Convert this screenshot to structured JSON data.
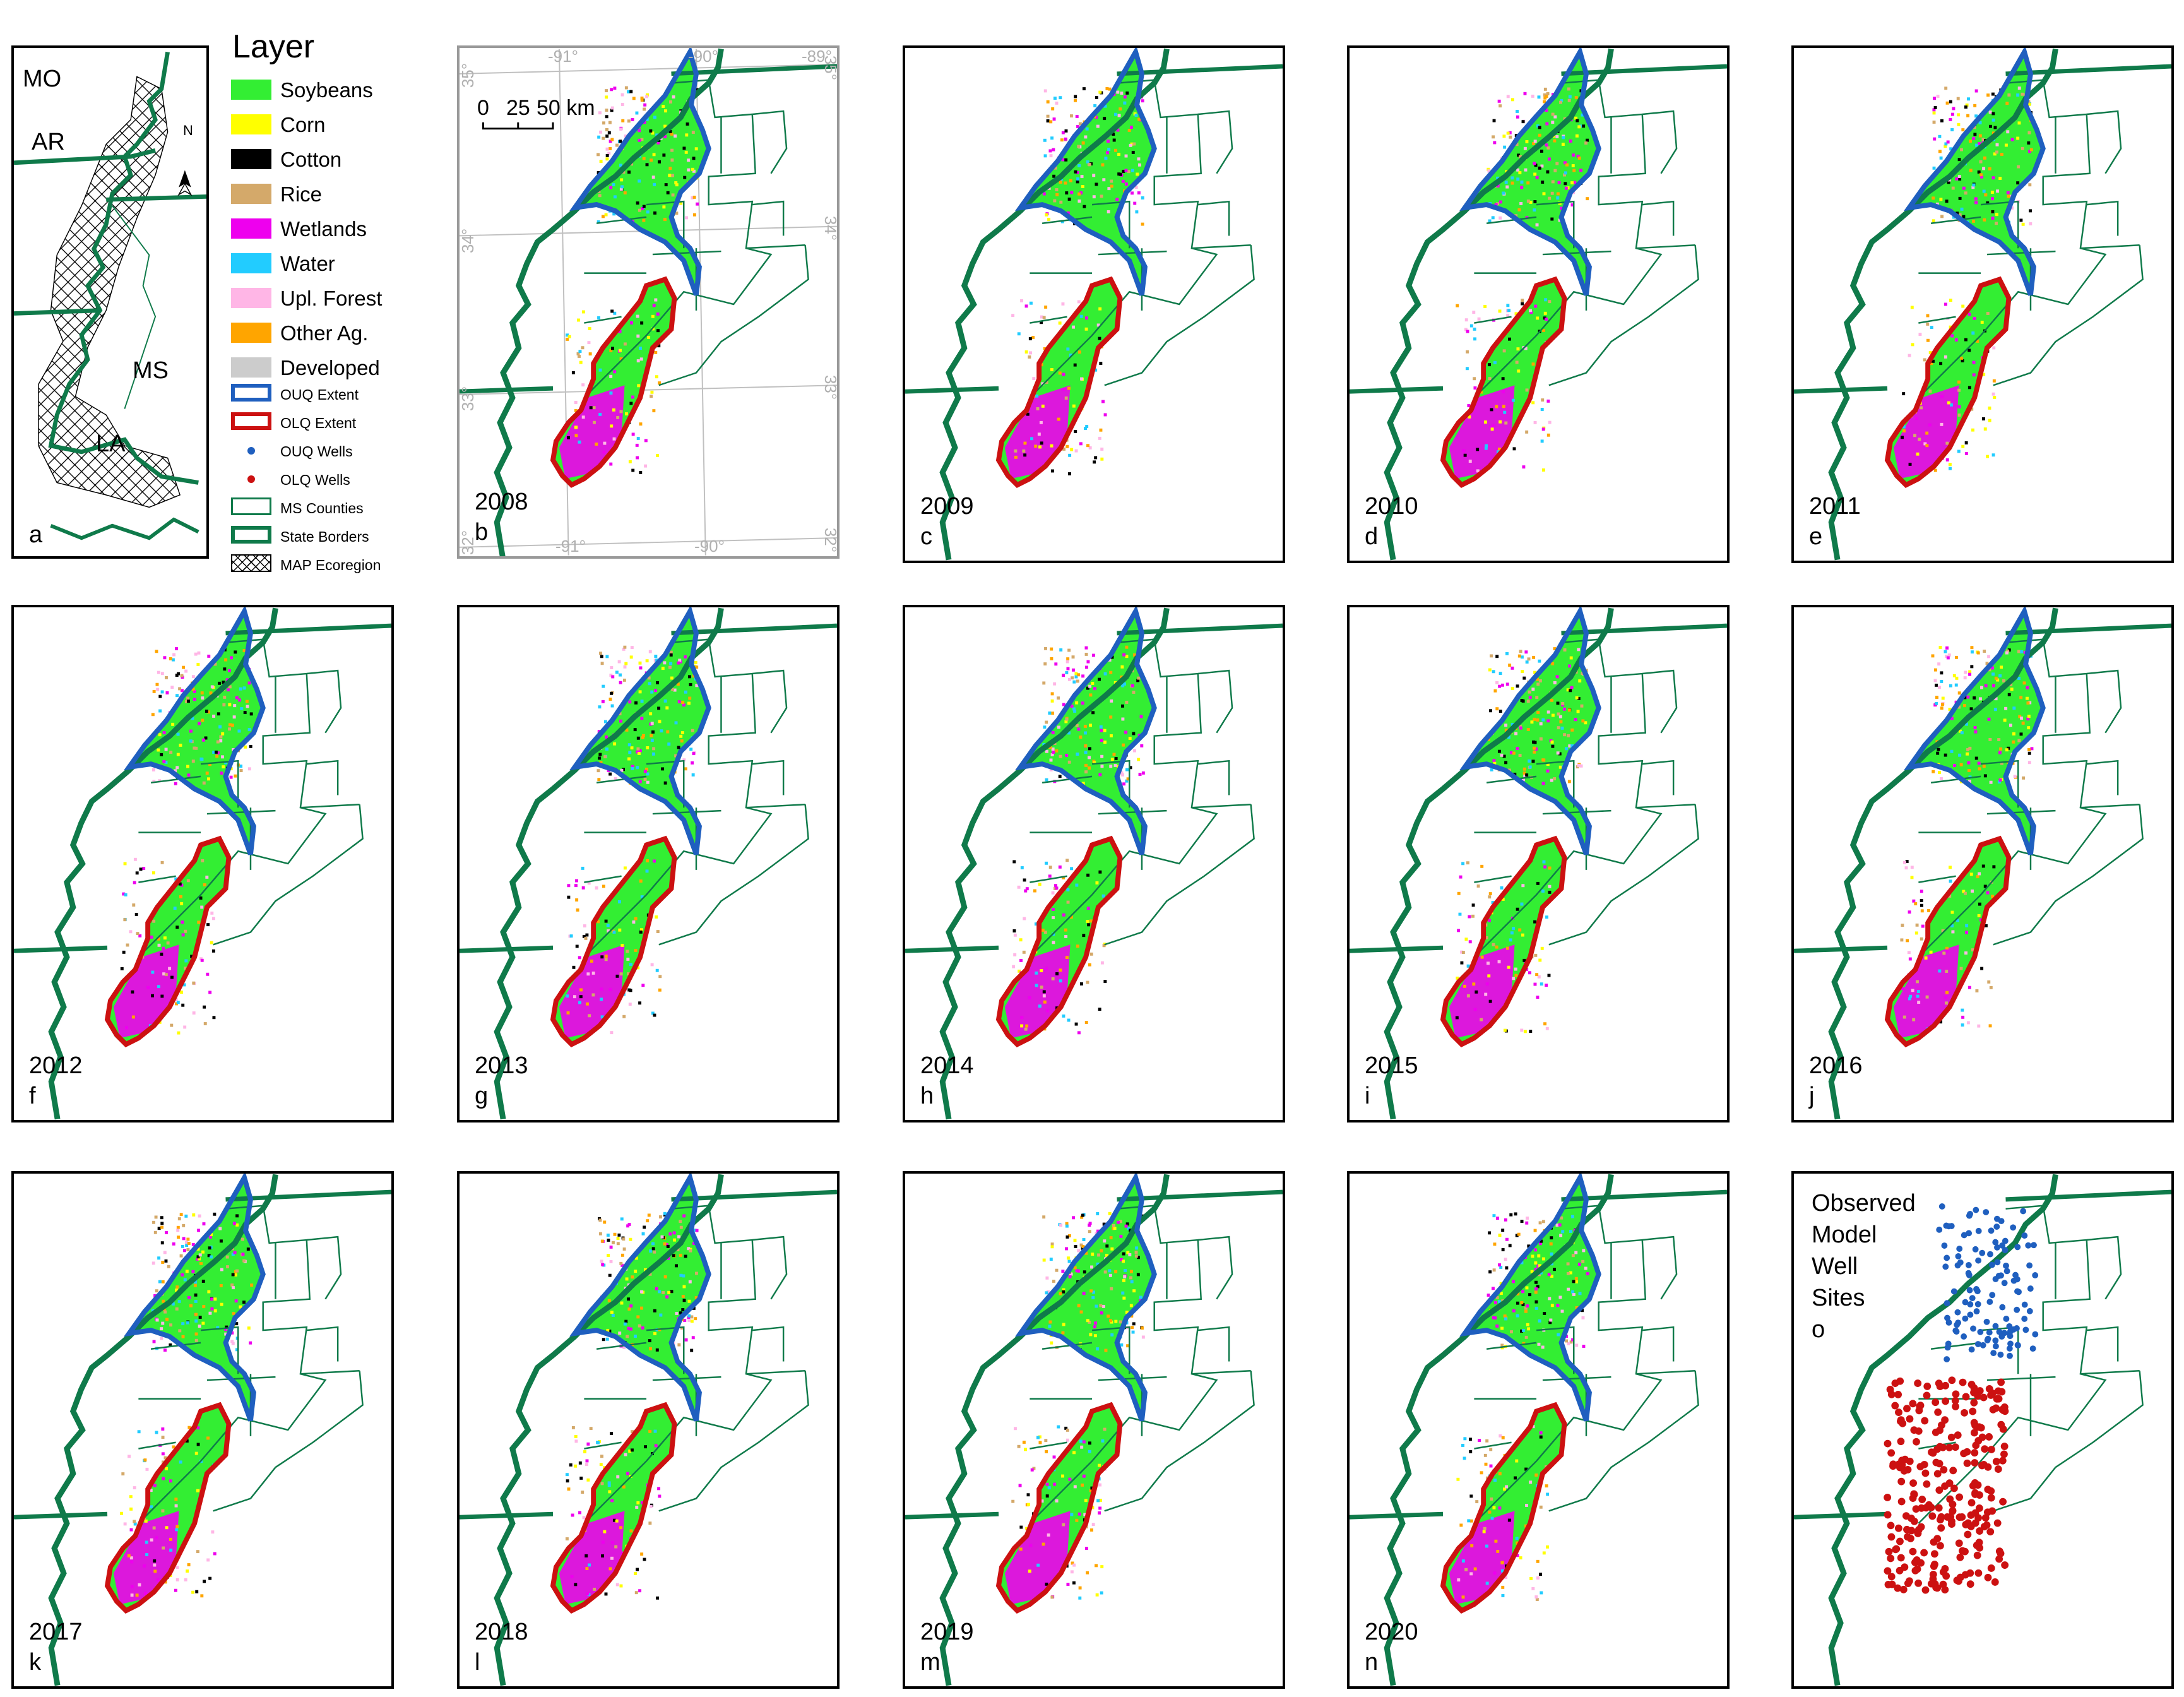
{
  "legend": {
    "title": "Layer",
    "items": [
      {
        "label": "Soybeans",
        "color": "#33ee33",
        "kind": "fill"
      },
      {
        "label": "Corn",
        "color": "#ffff00",
        "kind": "fill"
      },
      {
        "label": "Cotton",
        "color": "#000000",
        "kind": "fill"
      },
      {
        "label": "Rice",
        "color": "#d4a96a",
        "kind": "fill"
      },
      {
        "label": "Wetlands",
        "color": "#ee00ee",
        "kind": "fill"
      },
      {
        "label": "Water",
        "color": "#22ccff",
        "kind": "fill"
      },
      {
        "label": "Upl. Forest",
        "color": "#ffb6e6",
        "kind": "fill"
      },
      {
        "label": "Other Ag.",
        "color": "#ffa500",
        "kind": "fill"
      },
      {
        "label": "Developed",
        "color": "#cccccc",
        "kind": "fill"
      },
      {
        "label": "OUQ Extent",
        "color": "#1f5fbf",
        "kind": "outline"
      },
      {
        "label": "OLQ Extent",
        "color": "#cc1111",
        "kind": "outline"
      },
      {
        "label": "OUQ Wells",
        "color": "#1f5fbf",
        "kind": "dot"
      },
      {
        "label": "OLQ Wells",
        "color": "#cc1111",
        "kind": "dot"
      },
      {
        "label": "MS Counties",
        "color": "#0f7a4a",
        "kind": "thin-outline"
      },
      {
        "label": "State Borders",
        "color": "#0f7a4a",
        "kind": "outline"
      },
      {
        "label": "MAP Ecoregion",
        "color": "#000000",
        "kind": "hatch"
      }
    ]
  },
  "panel_a": {
    "letter": "a",
    "state_labels": [
      "MO",
      "AR",
      "MS",
      "LA"
    ],
    "north_label": "N"
  },
  "panel_b": {
    "year": "2008",
    "letter": "b",
    "scale_bar": {
      "labels": [
        "0",
        "25",
        "50 km"
      ]
    },
    "graticule": {
      "top": [
        "-91°",
        "-90°",
        "-89°"
      ],
      "bottom": [
        "-91°",
        "-90°"
      ],
      "left": [
        "35°",
        "34°",
        "33°",
        "32°"
      ],
      "right": [
        "35°",
        "34°",
        "33°",
        "32°"
      ]
    }
  },
  "year_panels": [
    {
      "year": "2009",
      "letter": "c"
    },
    {
      "year": "2010",
      "letter": "d"
    },
    {
      "year": "2011",
      "letter": "e"
    },
    {
      "year": "2012",
      "letter": "f"
    },
    {
      "year": "2013",
      "letter": "g"
    },
    {
      "year": "2014",
      "letter": "h"
    },
    {
      "year": "2015",
      "letter": "i"
    },
    {
      "year": "2016",
      "letter": "j"
    },
    {
      "year": "2017",
      "letter": "k"
    },
    {
      "year": "2018",
      "letter": "l"
    },
    {
      "year": "2019",
      "letter": "m"
    },
    {
      "year": "2020",
      "letter": "n"
    }
  ],
  "panel_o": {
    "title_lines": [
      "Observed",
      "Model",
      "Well",
      "Sites",
      "o"
    ]
  },
  "colors": {
    "state_border": "#0f7a4a",
    "ouq": "#1f5fbf",
    "olq": "#cc1111",
    "soy": "#33ee33",
    "wetland": "#ee00ee",
    "graticule": "#bbbbbb"
  }
}
